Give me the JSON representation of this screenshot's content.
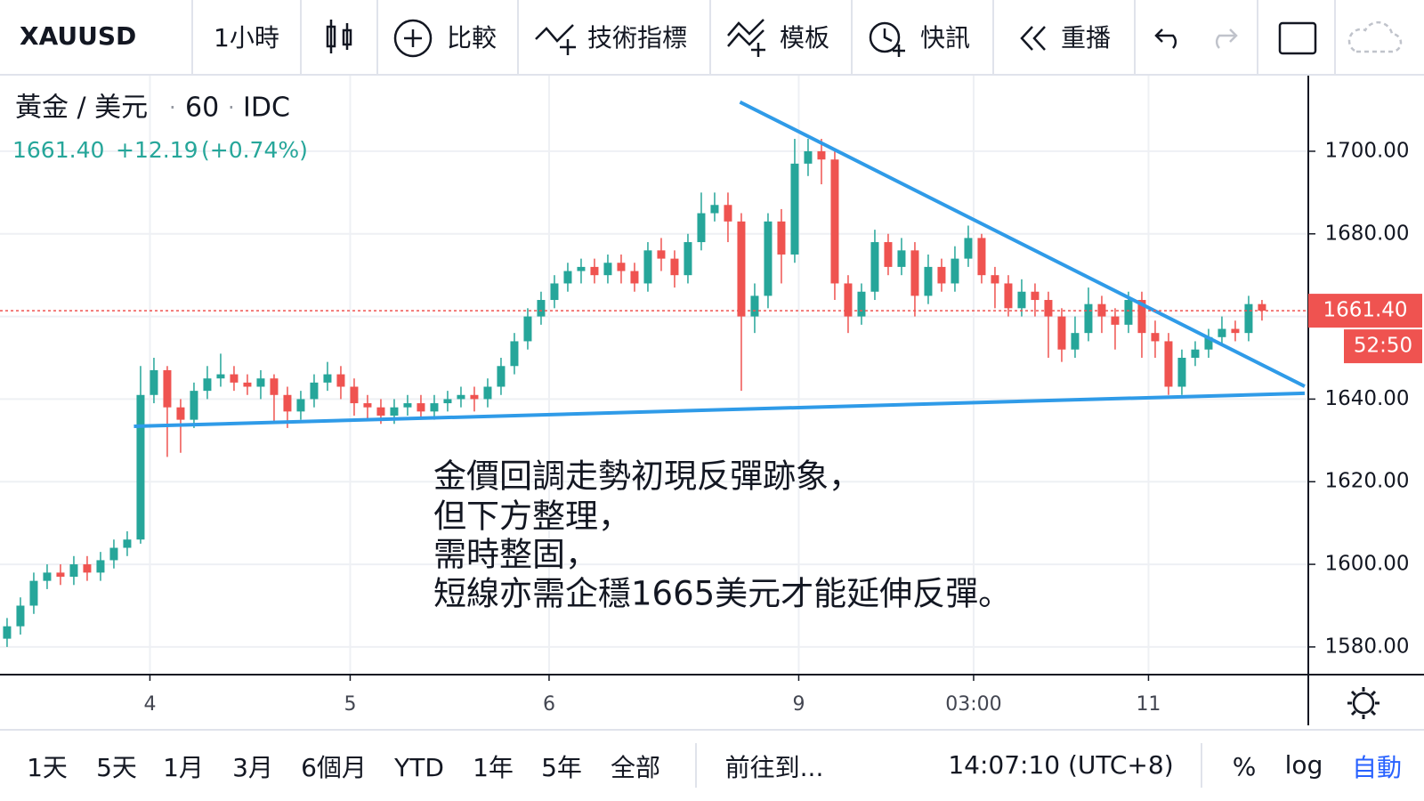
{
  "toolbar": {
    "symbol": "XAUUSD",
    "interval": "1小時",
    "compare": "比較",
    "indicators": "技術指標",
    "templates": "模板",
    "alerts": "快訊",
    "replay": "重播"
  },
  "header": {
    "name": "黃金 / 美元",
    "resolution": "60",
    "source": "IDC",
    "change": "+12.19",
    "change_pct": "(+0.74%)"
  },
  "bottom_bar": {
    "ranges": [
      "1天",
      "5天",
      "1月",
      "3月",
      "6個月",
      "YTD",
      "1年",
      "5年",
      "全部"
    ],
    "goto": "前往到...",
    "time": "14:07:10 (UTC+8)",
    "percent": "%",
    "log": "log",
    "auto": "自動"
  },
  "chart_data": {
    "type": "candlestick",
    "annotation": [
      "金價回調走勢初現反彈跡象，",
      "但下方整理，",
      "需時整固，",
      "短線亦需企穩1665美元才能延伸反彈。"
    ],
    "up_color": "#26a69a",
    "down_color": "#ef5350",
    "open": [
      1582,
      1585,
      1590,
      1596,
      1598,
      1597,
      1600,
      1598,
      1601,
      1604,
      1606,
      1641,
      1647,
      1638,
      1635,
      1642,
      1645,
      1646,
      1644,
      1643,
      1645,
      1641,
      1637,
      1640,
      1644,
      1646,
      1643,
      1639,
      1638,
      1636,
      1638,
      1639,
      1637,
      1639,
      1640,
      1641,
      1640,
      1643,
      1648,
      1654,
      1660,
      1664,
      1668,
      1671,
      1672,
      1670,
      1673,
      1671,
      1668,
      1676,
      1674,
      1670,
      1678,
      1685,
      1687,
      1683,
      1660,
      1665,
      1683,
      1675,
      1697,
      1700,
      1698,
      1668,
      1660,
      1666,
      1678,
      1672,
      1676,
      1665,
      1672,
      1668,
      1674,
      1679,
      1670,
      1668,
      1662,
      1666,
      1664,
      1660,
      1652,
      1656,
      1663,
      1660,
      1658,
      1664,
      1656,
      1654,
      1643,
      1650,
      1652,
      1655,
      1657,
      1656,
      1663
    ],
    "high": [
      1587,
      1592,
      1598,
      1600,
      1600,
      1602,
      1602,
      1603,
      1606,
      1608,
      1648,
      1650,
      1648,
      1640,
      1644,
      1648,
      1651,
      1648,
      1646,
      1647,
      1646,
      1643,
      1642,
      1646,
      1649,
      1648,
      1645,
      1641,
      1640,
      1640,
      1641,
      1641,
      1641,
      1642,
      1643,
      1643,
      1645,
      1650,
      1656,
      1662,
      1666,
      1670,
      1673,
      1674,
      1674,
      1675,
      1675,
      1673,
      1678,
      1679,
      1676,
      1680,
      1690,
      1690,
      1690,
      1685,
      1668,
      1685,
      1686,
      1703,
      1703,
      1703,
      1700,
      1670,
      1668,
      1681,
      1680,
      1679,
      1678,
      1675,
      1674,
      1677,
      1682,
      1680,
      1672,
      1670,
      1669,
      1668,
      1666,
      1662,
      1660,
      1667,
      1665,
      1662,
      1666,
      1666,
      1659,
      1656,
      1652,
      1654,
      1657,
      1660,
      1659,
      1665,
      1664
    ],
    "low": [
      1580,
      1583,
      1588,
      1594,
      1595,
      1595,
      1596,
      1596,
      1599,
      1602,
      1605,
      1639,
      1626,
      1627,
      1633,
      1640,
      1643,
      1642,
      1641,
      1640,
      1634,
      1633,
      1635,
      1638,
      1642,
      1640,
      1636,
      1635,
      1634,
      1634,
      1636,
      1635,
      1635,
      1637,
      1638,
      1637,
      1638,
      1641,
      1646,
      1652,
      1658,
      1662,
      1666,
      1668,
      1668,
      1668,
      1668,
      1666,
      1666,
      1671,
      1667,
      1668,
      1676,
      1683,
      1678,
      1642,
      1656,
      1662,
      1668,
      1673,
      1694,
      1692,
      1664,
      1656,
      1658,
      1664,
      1670,
      1670,
      1660,
      1663,
      1666,
      1666,
      1672,
      1668,
      1662,
      1660,
      1660,
      1660,
      1650,
      1649,
      1650,
      1654,
      1656,
      1652,
      1656,
      1650,
      1650,
      1641,
      1641,
      1648,
      1650,
      1653,
      1654,
      1654,
      1659
    ],
    "close": [
      1585,
      1590,
      1596,
      1598,
      1597,
      1600,
      1598,
      1601,
      1604,
      1606,
      1641,
      1647,
      1638,
      1635,
      1642,
      1645,
      1646,
      1644,
      1643,
      1645,
      1641,
      1637,
      1640,
      1644,
      1646,
      1643,
      1639,
      1638,
      1636,
      1638,
      1639,
      1637,
      1639,
      1640,
      1641,
      1640,
      1643,
      1648,
      1654,
      1660,
      1664,
      1668,
      1671,
      1672,
      1670,
      1673,
      1671,
      1668,
      1676,
      1674,
      1670,
      1678,
      1685,
      1687,
      1683,
      1660,
      1665,
      1683,
      1675,
      1697,
      1700,
      1698,
      1668,
      1660,
      1666,
      1678,
      1672,
      1676,
      1665,
      1672,
      1668,
      1674,
      1679,
      1670,
      1668,
      1662,
      1666,
      1664,
      1660,
      1652,
      1656,
      1663,
      1660,
      1658,
      1664,
      1656,
      1654,
      1643,
      1650,
      1652,
      1655,
      1657,
      1656,
      1663,
      1661.4
    ],
    "last_price": {
      "value": 1661.4,
      "label": "1661.40"
    },
    "countdown": "52:50",
    "trendlines": [
      {
        "color": "#2f9be8",
        "x": [
          54.9,
          97.2
        ],
        "y": [
          1711.9,
          1643.1
        ]
      },
      {
        "color": "#2f9be8",
        "x": [
          9.5,
          97.2
        ],
        "y": [
          1633.4,
          1641.4
        ]
      }
    ],
    "xlim": [
      -0.53,
      97.47
    ],
    "xticks": [
      {
        "value": 10.7,
        "label": "4"
      },
      {
        "value": 25.7,
        "label": "5"
      },
      {
        "value": 40.6,
        "label": "6"
      },
      {
        "value": 59.3,
        "label": "9"
      },
      {
        "value": 72.4,
        "label": "03:00"
      },
      {
        "value": 85.5,
        "label": "11"
      }
    ],
    "ylim": [
      1573.3,
      1718.3
    ],
    "yticks": [
      {
        "value": 1580,
        "label": "1580.00"
      },
      {
        "value": 1600,
        "label": "1600.00"
      },
      {
        "value": 1620,
        "label": "1620.00"
      },
      {
        "value": 1640,
        "label": "1640.00"
      },
      {
        "value": 1660,
        "label": "1660.00"
      },
      {
        "value": 1680,
        "label": "1680.00"
      },
      {
        "value": 1700,
        "label": "1700.00"
      }
    ],
    "grid": true
  }
}
